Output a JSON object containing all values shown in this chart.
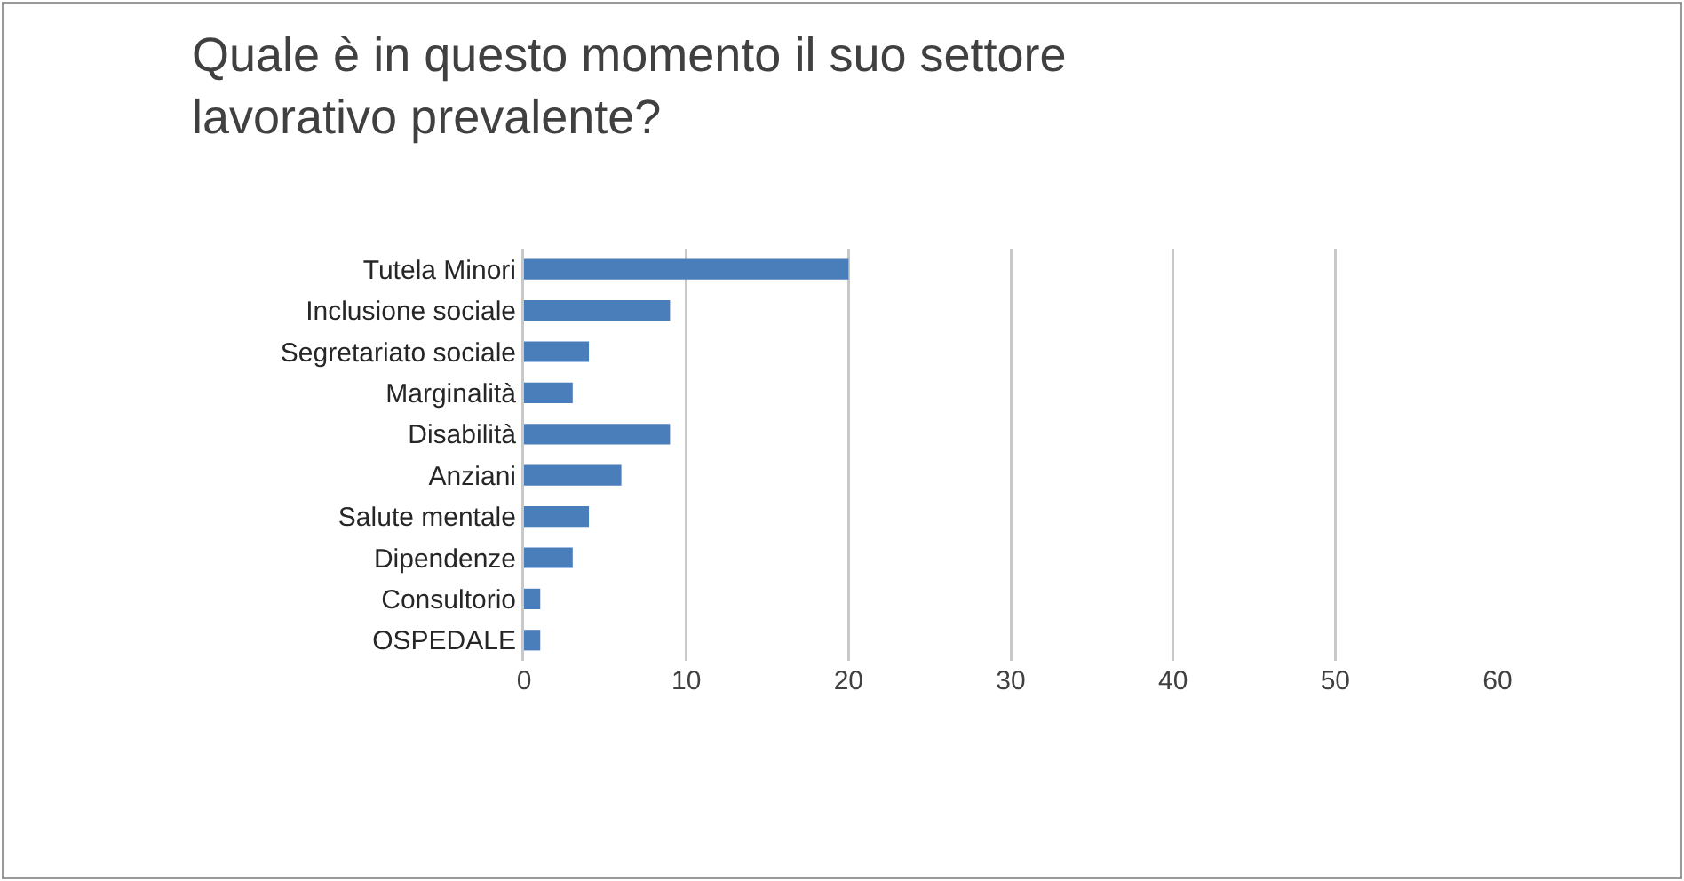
{
  "chart_data": {
    "type": "bar",
    "orientation": "horizontal",
    "title": "Quale è in questo momento il suo settore\nlavorativo prevalente?",
    "categories": [
      "Tutela Minori",
      "Inclusione sociale",
      "Segretariato sociale",
      "Marginalità",
      "Disabilità",
      "Anziani",
      "Salute mentale",
      "Dipendenze",
      "Consultorio",
      "OSPEDALE"
    ],
    "values": [
      20,
      9,
      4,
      3,
      9,
      6,
      4,
      3,
      1,
      1
    ],
    "color": "#4a7ebb",
    "xlim": [
      0,
      60
    ],
    "xticks": [
      0,
      10,
      20,
      30,
      40,
      50,
      60
    ],
    "grid": "x"
  }
}
